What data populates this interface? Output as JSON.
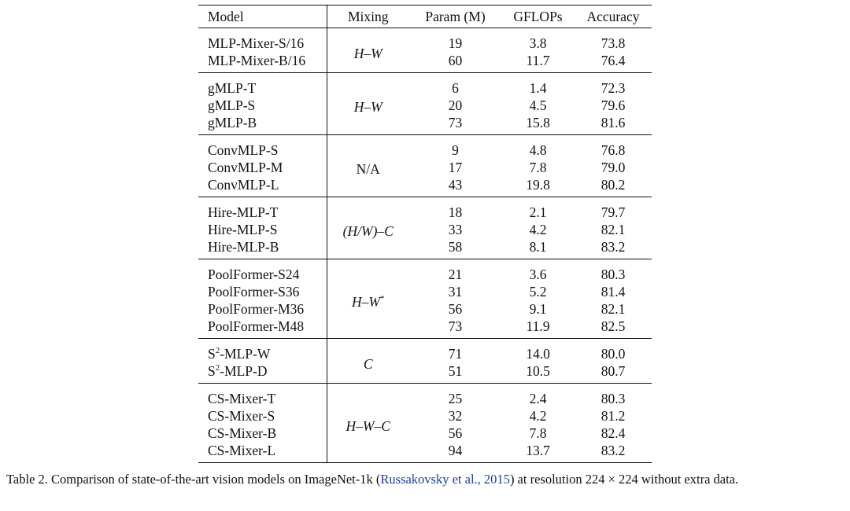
{
  "table": {
    "headers": [
      "Model",
      "Mixing",
      "Param (M)",
      "GFLOPs",
      "Accuracy"
    ],
    "groups": [
      {
        "mixing": "H–W",
        "mixing_sup": "",
        "rows": [
          {
            "model": "MLP-Mixer-S/16",
            "params": "19",
            "gflops": "3.8",
            "accuracy": "73.8"
          },
          {
            "model": "MLP-Mixer-B/16",
            "params": "60",
            "gflops": "11.7",
            "accuracy": "76.4"
          }
        ]
      },
      {
        "mixing": "H–W",
        "mixing_sup": "",
        "rows": [
          {
            "model": "gMLP-T",
            "params": "6",
            "gflops": "1.4",
            "accuracy": "72.3"
          },
          {
            "model": "gMLP-S",
            "params": "20",
            "gflops": "4.5",
            "accuracy": "79.6"
          },
          {
            "model": "gMLP-B",
            "params": "73",
            "gflops": "15.8",
            "accuracy": "81.6"
          }
        ]
      },
      {
        "mixing": "N/A",
        "mixing_sup": "",
        "rows": [
          {
            "model": "ConvMLP-S",
            "params": "9",
            "gflops": "4.8",
            "accuracy": "76.8"
          },
          {
            "model": "ConvMLP-M",
            "params": "17",
            "gflops": "7.8",
            "accuracy": "79.0"
          },
          {
            "model": "ConvMLP-L",
            "params": "43",
            "gflops": "19.8",
            "accuracy": "80.2"
          }
        ]
      },
      {
        "mixing": "(H/W)–C",
        "mixing_sup": "",
        "rows": [
          {
            "model": "Hire-MLP-T",
            "params": "18",
            "gflops": "2.1",
            "accuracy": "79.7"
          },
          {
            "model": "Hire-MLP-S",
            "params": "33",
            "gflops": "4.2",
            "accuracy": "82.1"
          },
          {
            "model": "Hire-MLP-B",
            "params": "58",
            "gflops": "8.1",
            "accuracy": "83.2"
          }
        ]
      },
      {
        "mixing": "H–W",
        "mixing_sup": "*",
        "rows": [
          {
            "model": "PoolFormer-S24",
            "params": "21",
            "gflops": "3.6",
            "accuracy": "80.3"
          },
          {
            "model": "PoolFormer-S36",
            "params": "31",
            "gflops": "5.2",
            "accuracy": "81.4"
          },
          {
            "model": "PoolFormer-M36",
            "params": "56",
            "gflops": "9.1",
            "accuracy": "82.1"
          },
          {
            "model": "PoolFormer-M48",
            "params": "73",
            "gflops": "11.9",
            "accuracy": "82.5"
          }
        ]
      },
      {
        "mixing": "C",
        "mixing_sup": "",
        "rows": [
          {
            "model_pre": "S",
            "model_sup": "2",
            "model_post": "-MLP-W",
            "params": "71",
            "gflops": "14.0",
            "accuracy": "80.0"
          },
          {
            "model_pre": "S",
            "model_sup": "2",
            "model_post": "-MLP-D",
            "params": "51",
            "gflops": "10.5",
            "accuracy": "80.7"
          }
        ]
      },
      {
        "mixing": "H–W–C",
        "mixing_sup": "",
        "rows": [
          {
            "model": "CS-Mixer-T",
            "params": "25",
            "gflops": "2.4",
            "accuracy": "80.3"
          },
          {
            "model": "CS-Mixer-S",
            "params": "32",
            "gflops": "4.2",
            "accuracy": "81.2"
          },
          {
            "model": "CS-Mixer-B",
            "params": "56",
            "gflops": "7.8",
            "accuracy": "82.4"
          },
          {
            "model": "CS-Mixer-L",
            "params": "94",
            "gflops": "13.7",
            "accuracy": "83.2"
          }
        ]
      }
    ]
  },
  "caption": {
    "prefix": "Table 2. Comparison of state-of-the-art vision models on ImageNet-1k (",
    "citation": "Russakovsky et al., 2015",
    "suffix": ") at resolution 224 × 224 without extra data."
  }
}
